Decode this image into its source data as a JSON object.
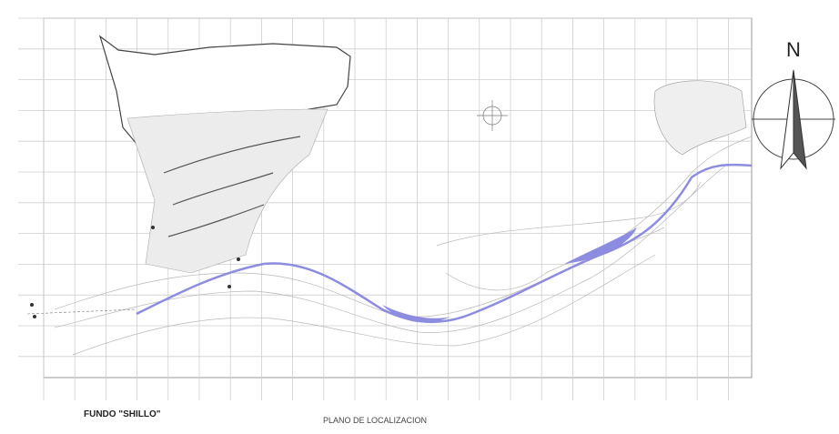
{
  "north": "N",
  "labels": {
    "fundo": "FUNDO \"SHILLO\"",
    "plan_title": "PLANO DE LOCALIZACION"
  }
}
